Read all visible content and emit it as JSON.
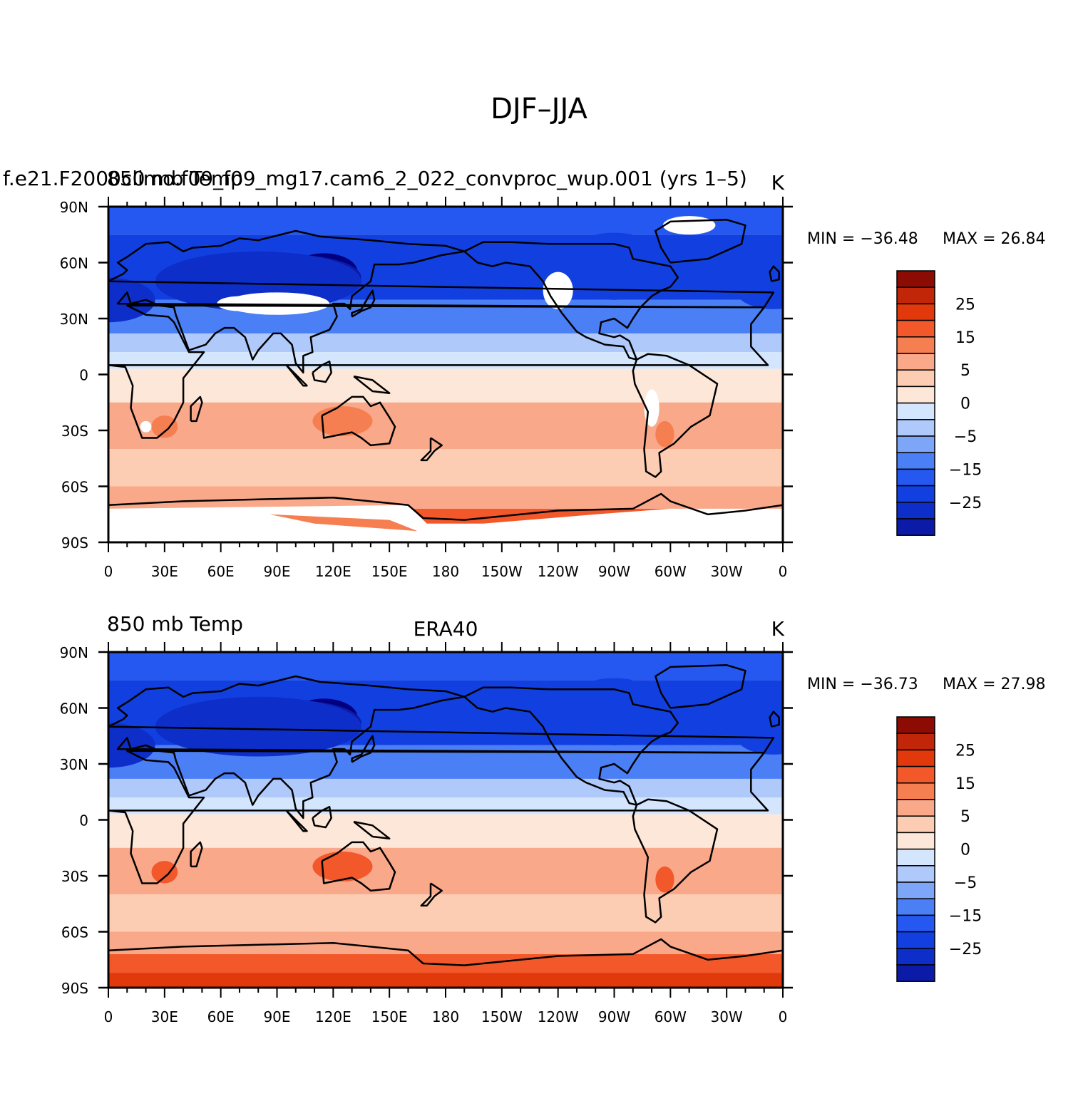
{
  "figure": {
    "title": "DJF–JJA"
  },
  "colors": {
    "levels": [
      "#000080",
      "#0c1aa8",
      "#0d2ec8",
      "#1240e0",
      "#2558f0",
      "#4a7ff5",
      "#7ea6f8",
      "#afc9fb",
      "#d4e6fd",
      "#fde7d8",
      "#fccdb2",
      "#f9a98a",
      "#f67f52",
      "#f2582a",
      "#e2390c",
      "#c02607",
      "#8c0c04"
    ],
    "background": "#ffffff",
    "coast": "#000000"
  },
  "panels": [
    {
      "left_title": "f.e21.F2000climo.f09_f09_mg17.cam6_2_022_convproc_wup.001 (yrs 1–5)",
      "left_title_overlap": "850 mb Temp",
      "center_title": "",
      "units": "K",
      "min_text": "MIN = −36.48",
      "max_text": "MAX =   26.84",
      "lat_labels": [
        "90N",
        "60N",
        "30N",
        "0",
        "30S",
        "60S",
        "90S"
      ],
      "lon_labels": [
        "0",
        "30E",
        "60E",
        "90E",
        "120E",
        "150E",
        "180",
        "150W",
        "120W",
        "90W",
        "60W",
        "30W",
        "0"
      ],
      "colorbar_labels": [
        "25",
        "15",
        "5",
        "0",
        "−5",
        "−15",
        "−25"
      ],
      "has_missing": true
    },
    {
      "left_title": "850 mb Temp",
      "left_title_overlap": "",
      "center_title": "ERA40",
      "units": "K",
      "min_text": "MIN = −36.73",
      "max_text": "MAX =   27.98",
      "lat_labels": [
        "90N",
        "60N",
        "30N",
        "0",
        "30S",
        "60S",
        "90S"
      ],
      "lon_labels": [
        "0",
        "30E",
        "60E",
        "90E",
        "120E",
        "150E",
        "180",
        "150W",
        "120W",
        "90W",
        "60W",
        "30W",
        "0"
      ],
      "colorbar_labels": [
        "25",
        "15",
        "5",
        "0",
        "−5",
        "−15",
        "−25"
      ],
      "has_missing": false
    }
  ]
}
